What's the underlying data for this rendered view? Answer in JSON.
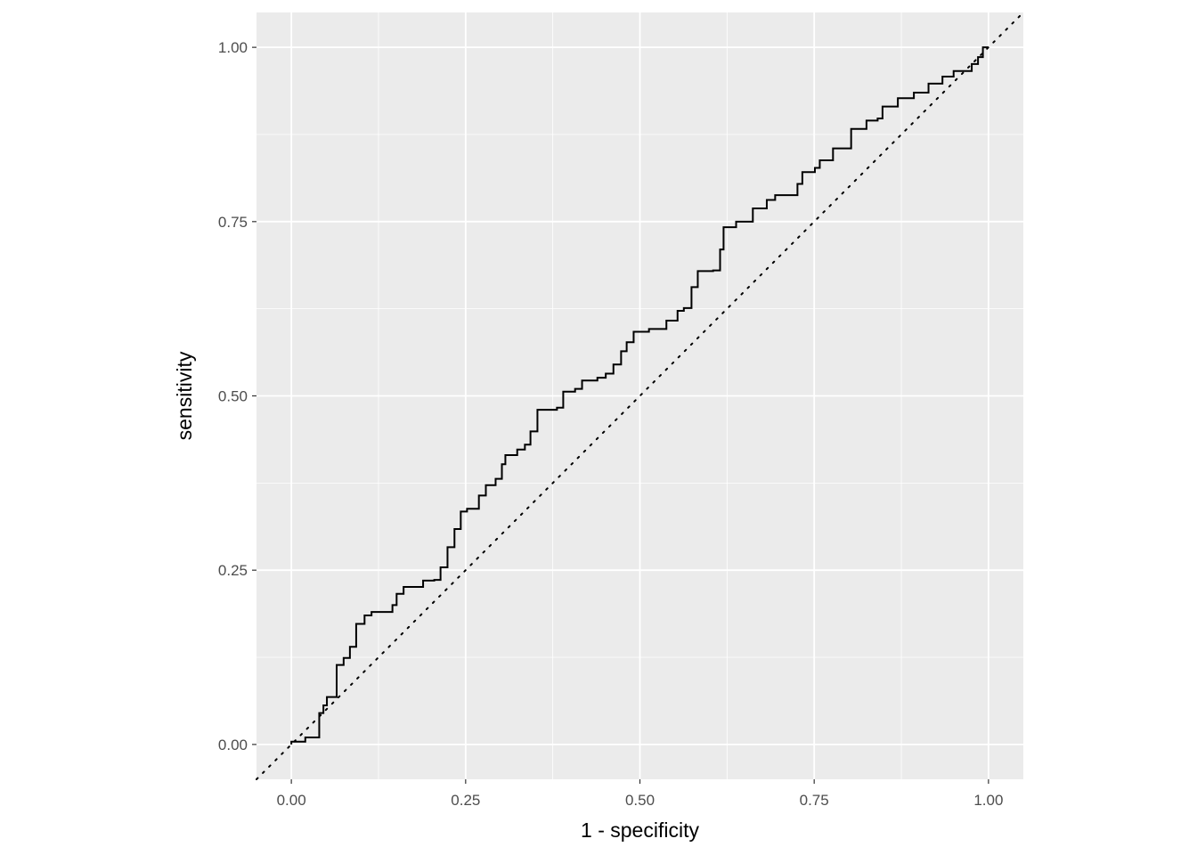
{
  "chart_data": {
    "type": "line",
    "title": "",
    "xlabel": "1 - specificity",
    "ylabel": "sensitivity",
    "xlim": [
      -0.05,
      1.05
    ],
    "ylim": [
      -0.05,
      1.05
    ],
    "grid": true,
    "panel_background": "#EBEBEB",
    "x_ticks": [
      "0.00",
      "0.25",
      "0.50",
      "0.75",
      "1.00"
    ],
    "y_ticks": [
      "0.00",
      "0.25",
      "0.50",
      "0.75",
      "1.00"
    ],
    "series": [
      {
        "style": "step",
        "color": "#000000",
        "points": [
          [
            0,
            0
          ],
          [
            0,
            0.004
          ],
          [
            0.02,
            0.01
          ],
          [
            0.04,
            0.045
          ],
          [
            0.046,
            0.056
          ],
          [
            0.051,
            0.068
          ],
          [
            0.065,
            0.114
          ],
          [
            0.075,
            0.124
          ],
          [
            0.084,
            0.14
          ],
          [
            0.093,
            0.173
          ],
          [
            0.105,
            0.185
          ],
          [
            0.115,
            0.19
          ],
          [
            0.134,
            0.19
          ],
          [
            0.145,
            0.2
          ],
          [
            0.151,
            0.216
          ],
          [
            0.161,
            0.226
          ],
          [
            0.179,
            0.226
          ],
          [
            0.189,
            0.235
          ],
          [
            0.205,
            0.236
          ],
          [
            0.214,
            0.254
          ],
          [
            0.224,
            0.283
          ],
          [
            0.234,
            0.309
          ],
          [
            0.243,
            0.334
          ],
          [
            0.252,
            0.338
          ],
          [
            0.269,
            0.357
          ],
          [
            0.279,
            0.372
          ],
          [
            0.293,
            0.381
          ],
          [
            0.302,
            0.402
          ],
          [
            0.307,
            0.415
          ],
          [
            0.324,
            0.423
          ],
          [
            0.335,
            0.43
          ],
          [
            0.343,
            0.449
          ],
          [
            0.353,
            0.48
          ],
          [
            0.381,
            0.483
          ],
          [
            0.39,
            0.506
          ],
          [
            0.407,
            0.51
          ],
          [
            0.417,
            0.522
          ],
          [
            0.439,
            0.526
          ],
          [
            0.451,
            0.532
          ],
          [
            0.462,
            0.545
          ],
          [
            0.473,
            0.564
          ],
          [
            0.481,
            0.577
          ],
          [
            0.491,
            0.592
          ],
          [
            0.513,
            0.596
          ],
          [
            0.538,
            0.608
          ],
          [
            0.554,
            0.622
          ],
          [
            0.563,
            0.626
          ],
          [
            0.574,
            0.656
          ],
          [
            0.583,
            0.679
          ],
          [
            0.605,
            0.68
          ],
          [
            0.615,
            0.71
          ],
          [
            0.62,
            0.742
          ],
          [
            0.638,
            0.75
          ],
          [
            0.662,
            0.769
          ],
          [
            0.682,
            0.781
          ],
          [
            0.694,
            0.788
          ],
          [
            0.726,
            0.804
          ],
          [
            0.733,
            0.821
          ],
          [
            0.751,
            0.827
          ],
          [
            0.758,
            0.838
          ],
          [
            0.777,
            0.855
          ],
          [
            0.803,
            0.883
          ],
          [
            0.825,
            0.895
          ],
          [
            0.841,
            0.898
          ],
          [
            0.848,
            0.915
          ],
          [
            0.87,
            0.927
          ],
          [
            0.893,
            0.935
          ],
          [
            0.914,
            0.948
          ],
          [
            0.934,
            0.958
          ],
          [
            0.95,
            0.966
          ],
          [
            0.976,
            0.976
          ],
          [
            0.985,
            0.986
          ],
          [
            0.992,
            1.0
          ],
          [
            1.0,
            1.0
          ]
        ]
      },
      {
        "style": "dotted-reference",
        "color": "#000000",
        "points": [
          [
            -0.05,
            -0.05
          ],
          [
            1.05,
            1.05
          ]
        ]
      }
    ]
  }
}
